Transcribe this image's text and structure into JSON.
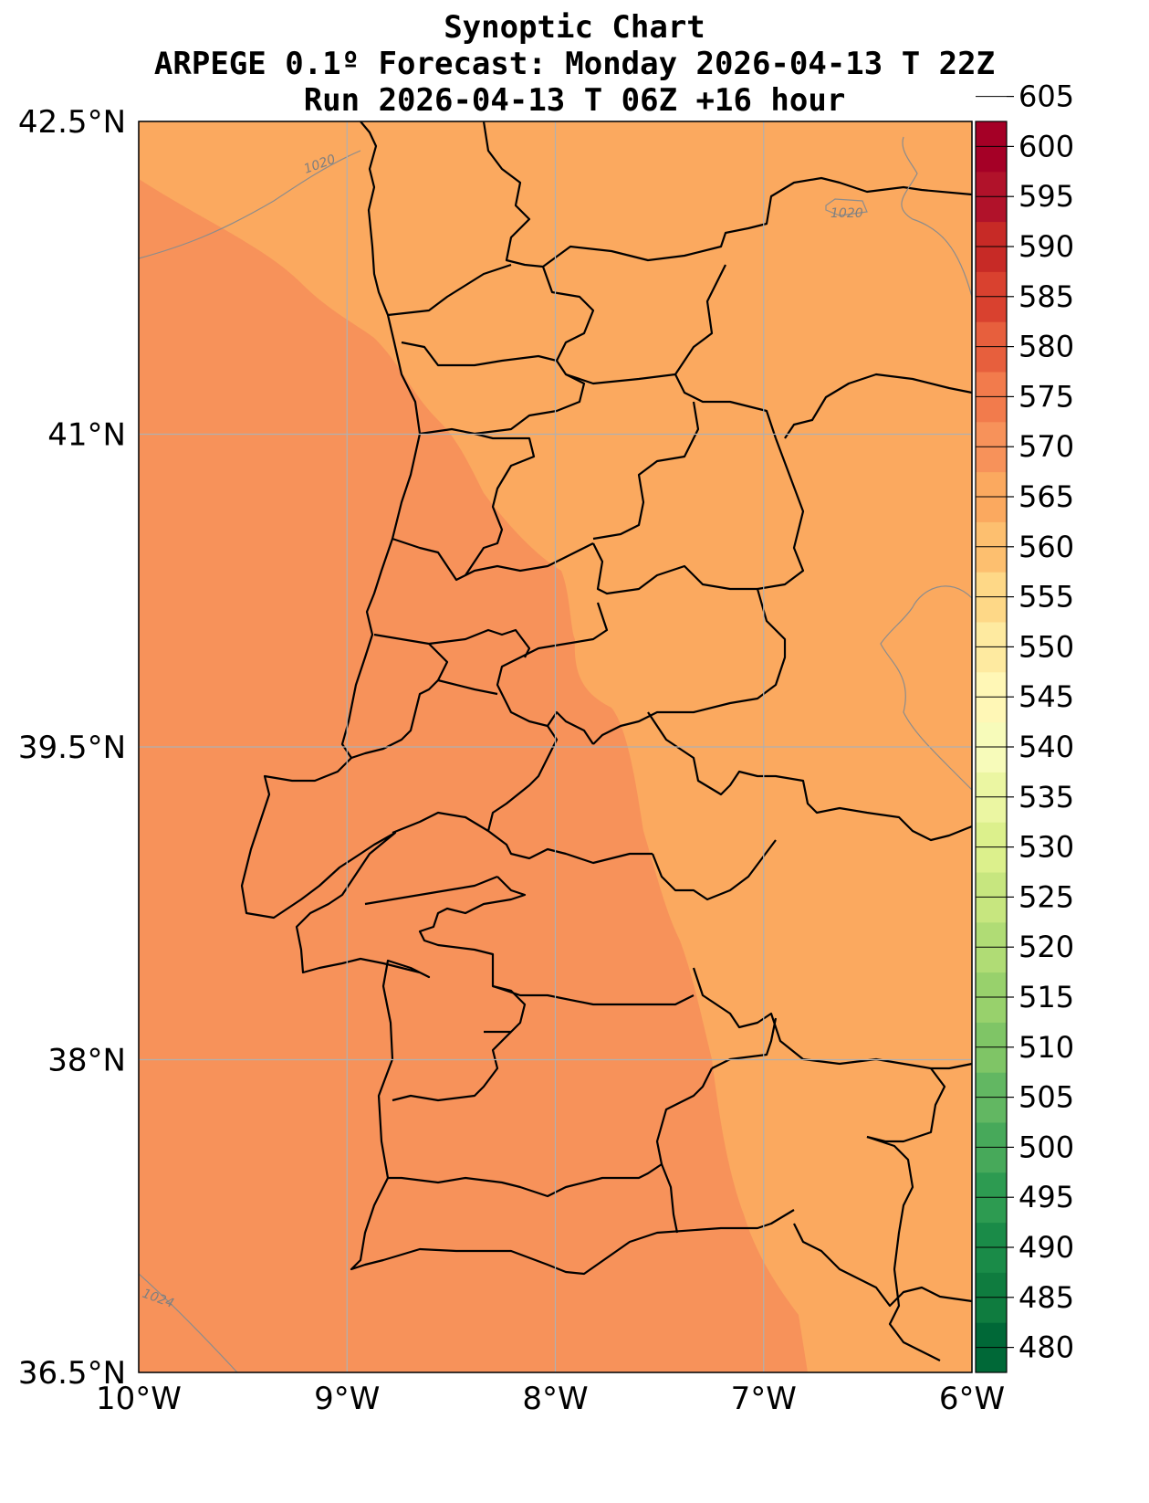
{
  "titles": {
    "line1": "Synoptic Chart",
    "line2": "ARPEGE 0.1º Forecast: Monday 2026-04-13 T 22Z",
    "line3": "Run 2026-04-13 T 06Z +16 hour"
  },
  "map": {
    "lon_range": [
      -10,
      -6
    ],
    "lat_range": [
      36.5,
      42.5
    ],
    "gridlines": true,
    "lat_ticks": [
      {
        "value": 42.5,
        "label": "42.5°N"
      },
      {
        "value": 41.0,
        "label": "41°N"
      },
      {
        "value": 39.5,
        "label": "39.5°N"
      },
      {
        "value": 38.0,
        "label": "38°N"
      },
      {
        "value": 36.5,
        "label": "36.5°N"
      }
    ],
    "lon_ticks": [
      {
        "value": -10,
        "label": "10°W"
      },
      {
        "value": -9,
        "label": "9°W"
      },
      {
        "value": -8,
        "label": "8°W"
      },
      {
        "value": -7,
        "label": "7°W"
      },
      {
        "value": -6,
        "label": "6°W"
      }
    ],
    "fill_colors": {
      "band_565_570": "#fba95f",
      "band_570_575": "#f7925a",
      "border": "#000000",
      "isobar": "#8c8c8c",
      "grid": "#b0b0b0"
    },
    "isobar_labels": [
      "1020",
      "1020",
      "1024"
    ]
  },
  "colorbar": {
    "levels": [
      480,
      485,
      490,
      495,
      500,
      505,
      510,
      515,
      520,
      525,
      530,
      535,
      540,
      545,
      550,
      555,
      560,
      565,
      570,
      575,
      580,
      585,
      590,
      595,
      600,
      605
    ],
    "colors": [
      "#006837",
      "#0f7c3f",
      "#1a8b48",
      "#2d9b51",
      "#47a95a",
      "#62b762",
      "#7fc566",
      "#98d16c",
      "#b0dc75",
      "#c7e67f",
      "#dcf08c",
      "#ebf6a2",
      "#f7fbba",
      "#fff7b6",
      "#feeaa0",
      "#fed887",
      "#fdbf6f",
      "#fba95f",
      "#f7925a",
      "#f27b4c",
      "#e75f3d",
      "#d9412f",
      "#c72a26",
      "#b1122a",
      "#a50026"
    ],
    "tick_labels": [
      "480",
      "485",
      "490",
      "495",
      "500",
      "505",
      "510",
      "515",
      "520",
      "525",
      "530",
      "535",
      "540",
      "545",
      "550",
      "555",
      "560",
      "565",
      "570",
      "575",
      "580",
      "585",
      "590",
      "595",
      "600",
      "605"
    ]
  }
}
